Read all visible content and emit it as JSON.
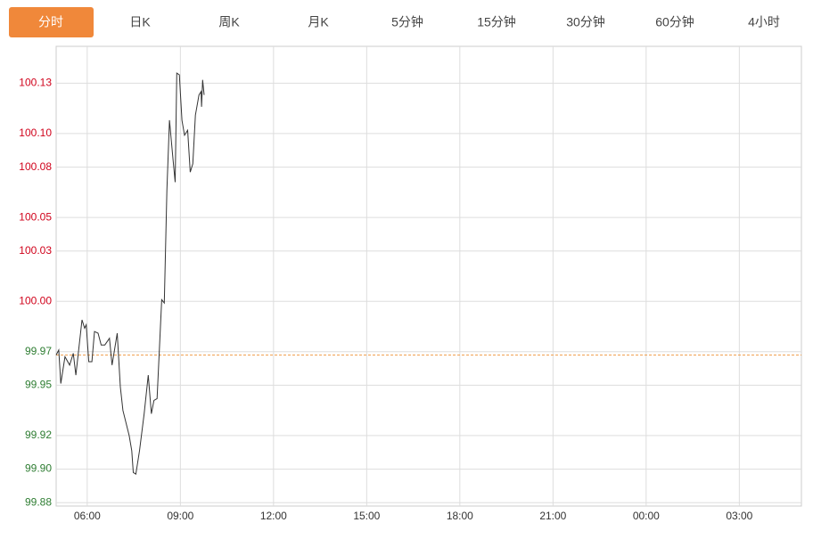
{
  "tabs": {
    "items": [
      "分时",
      "日K",
      "周K",
      "月K",
      "5分钟",
      "15分钟",
      "30分钟",
      "60分钟",
      "4小时"
    ],
    "active": 0,
    "active_color": "#f0883a"
  },
  "chart_data": {
    "type": "line",
    "x": [
      "05:00",
      "05:05",
      "05:09",
      "05:17",
      "05:26",
      "05:33",
      "05:38",
      "05:50",
      "05:55",
      "05:58",
      "06:03",
      "06:09",
      "06:14",
      "06:21",
      "06:27",
      "06:34",
      "06:43",
      "06:48",
      "06:58",
      "07:04",
      "07:09",
      "07:21",
      "07:26",
      "07:29",
      "07:34",
      "07:41",
      "07:50",
      "07:58",
      "08:04",
      "08:09",
      "08:15",
      "08:24",
      "08:29",
      "08:34",
      "08:39",
      "08:46",
      "08:50",
      "08:53",
      "08:58",
      "09:03",
      "09:08",
      "09:14",
      "09:19",
      "09:24",
      "09:29",
      "09:36",
      "09:40",
      "09:41",
      "09:43",
      "09:46"
    ],
    "values": [
      99.968,
      99.971,
      99.951,
      99.967,
      99.962,
      99.969,
      99.956,
      99.989,
      99.984,
      99.986,
      99.964,
      99.964,
      99.982,
      99.981,
      99.974,
      99.974,
      99.978,
      99.962,
      99.981,
      99.949,
      99.935,
      99.92,
      99.911,
      99.898,
      99.897,
      99.911,
      99.933,
      99.956,
      99.933,
      99.941,
      99.942,
      100.001,
      99.999,
      100.066,
      100.108,
      100.084,
      100.071,
      100.136,
      100.135,
      100.108,
      100.099,
      100.102,
      100.077,
      100.082,
      100.111,
      100.123,
      100.125,
      100.116,
      100.132,
      100.123
    ],
    "color": "#333333",
    "xlim": [
      "05:00",
      "05:00"
    ],
    "xticks": [
      "06:00",
      "09:00",
      "12:00",
      "15:00",
      "18:00",
      "21:00",
      "00:00",
      "03:00"
    ],
    "ylim": [
      99.878,
      100.152
    ],
    "yticks": [
      {
        "value": 99.88,
        "label": "99.88"
      },
      {
        "value": 99.9,
        "label": "99.90"
      },
      {
        "value": 99.92,
        "label": "99.92"
      },
      {
        "value": 99.95,
        "label": "99.95"
      },
      {
        "value": 99.97,
        "label": "99.97"
      },
      {
        "value": 100.0,
        "label": "100.00"
      },
      {
        "value": 100.03,
        "label": "100.03"
      },
      {
        "value": 100.05,
        "label": "100.05"
      },
      {
        "value": 100.08,
        "label": "100.08"
      },
      {
        "value": 100.1,
        "label": "100.10"
      },
      {
        "value": 100.13,
        "label": "100.13"
      }
    ],
    "grid": true,
    "reference_line": {
      "value": 99.968,
      "color": "#f0a050"
    },
    "color_threshold": 100,
    "up_color": "#d0021b",
    "down_color": "#2e7d32"
  }
}
